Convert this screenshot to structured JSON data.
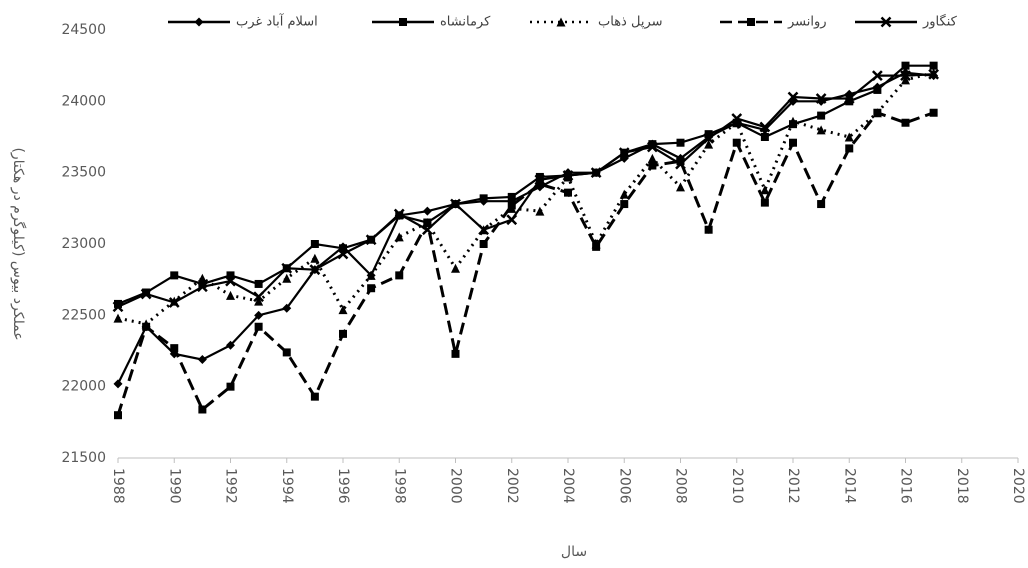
{
  "chart_data": {
    "type": "line",
    "x_label": "سال",
    "y_label": "عملکرد بیوس (کیلوگرم در هکتار)",
    "x": [
      1988,
      1989,
      1990,
      1991,
      1992,
      1993,
      1994,
      1995,
      1996,
      1997,
      1998,
      1999,
      2000,
      2001,
      2002,
      2003,
      2004,
      2005,
      2006,
      2007,
      2008,
      2009,
      2010,
      2011,
      2012,
      2013,
      2014,
      2015,
      2016,
      2017
    ],
    "xlim": [
      1988,
      2020
    ],
    "xticks": [
      1988,
      1990,
      1992,
      1994,
      1996,
      1998,
      2000,
      2002,
      2004,
      2006,
      2008,
      2010,
      2012,
      2014,
      2016,
      2018,
      2020
    ],
    "ylim": [
      21500,
      24500
    ],
    "yticks": [
      21500,
      22000,
      22500,
      23000,
      23500,
      24000,
      24500
    ],
    "grid": false,
    "legend": "top",
    "series": [
      {
        "name": "اسلام آباد غرب",
        "color": "#000000",
        "dash": "solid",
        "marker": "diamond",
        "values": [
          22020,
          22420,
          22230,
          22190,
          22290,
          22500,
          22550,
          22820,
          22980,
          22780,
          23200,
          23230,
          23280,
          23300,
          23300,
          23400,
          23500,
          23500,
          23600,
          23700,
          23600,
          23750,
          23850,
          23800,
          24000,
          24000,
          24050,
          24100,
          24200,
          24180
        ]
      },
      {
        "name": "کرمانشاه",
        "color": "#000000",
        "dash": "solid",
        "marker": "square",
        "values": [
          22580,
          22660,
          22780,
          22720,
          22780,
          22720,
          22830,
          23000,
          22970,
          23030,
          23200,
          23150,
          23280,
          23320,
          23330,
          23470,
          23480,
          23500,
          23640,
          23700,
          23710,
          23770,
          23850,
          23750,
          23840,
          23900,
          24000,
          24080,
          24250,
          24250
        ]
      },
      {
        "name": "سرپل ذهاب",
        "color": "#000000",
        "dash": "dotted",
        "marker": "triangle",
        "values": [
          22480,
          22440,
          22600,
          22760,
          22640,
          22600,
          22760,
          22900,
          22540,
          22780,
          23050,
          23150,
          22830,
          23100,
          23250,
          23230,
          23470,
          23000,
          23350,
          23600,
          23400,
          23700,
          23850,
          23380,
          23860,
          23800,
          23750,
          23920,
          24150,
          24200
        ]
      },
      {
        "name": "روانسر",
        "color": "#000000",
        "dash": "dashed",
        "marker": "square",
        "values": [
          21800,
          22420,
          22270,
          21840,
          22000,
          22420,
          22240,
          21930,
          22370,
          22690,
          22780,
          23150,
          22230,
          23000,
          23270,
          23420,
          23360,
          22980,
          23280,
          23550,
          23580,
          23100,
          23710,
          23290,
          23710,
          23280,
          23670,
          23920,
          23850,
          23920
        ]
      },
      {
        "name": "کنگاور",
        "color": "#000000",
        "dash": "solid",
        "marker": "cross",
        "values": [
          22560,
          22650,
          22590,
          22700,
          22740,
          22630,
          22830,
          22820,
          22930,
          23030,
          23210,
          23100,
          23280,
          23100,
          23170,
          23450,
          23480,
          23500,
          23640,
          23680,
          23560,
          23740,
          23880,
          23820,
          24030,
          24020,
          24020,
          24180,
          24180,
          24190
        ]
      }
    ]
  }
}
